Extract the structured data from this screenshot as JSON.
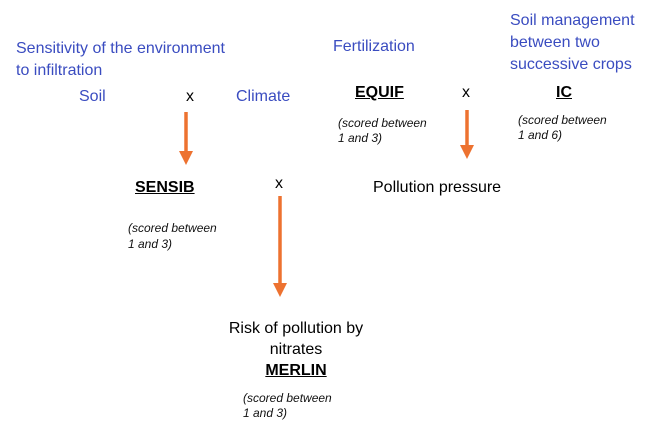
{
  "sensitivity": {
    "lines": [
      "Sensitivity of the environment",
      "to infiltration"
    ]
  },
  "soil": "Soil",
  "times_1": "x",
  "climate": "Climate",
  "fertilization": "Fertilization",
  "soil_management": {
    "lines": [
      "Soil management",
      "between two",
      "successive crops"
    ]
  },
  "equif": {
    "label": "EQUIF",
    "score": [
      "(scored between",
      "1 and 3)"
    ]
  },
  "times_2": "x",
  "ic": {
    "label": "IC",
    "score": [
      "(scored between",
      "1 and 6)"
    ]
  },
  "sensib": {
    "label": "SENSIB",
    "score": [
      "(scored between",
      "1 and 3)"
    ]
  },
  "times_3": "x",
  "pollution_pressure": "Pollution pressure",
  "merlin": {
    "lines": [
      "Risk of pollution by",
      "nitrates"
    ],
    "label": "MERLIN",
    "score": [
      "(scored between",
      "1 and 3)"
    ]
  }
}
